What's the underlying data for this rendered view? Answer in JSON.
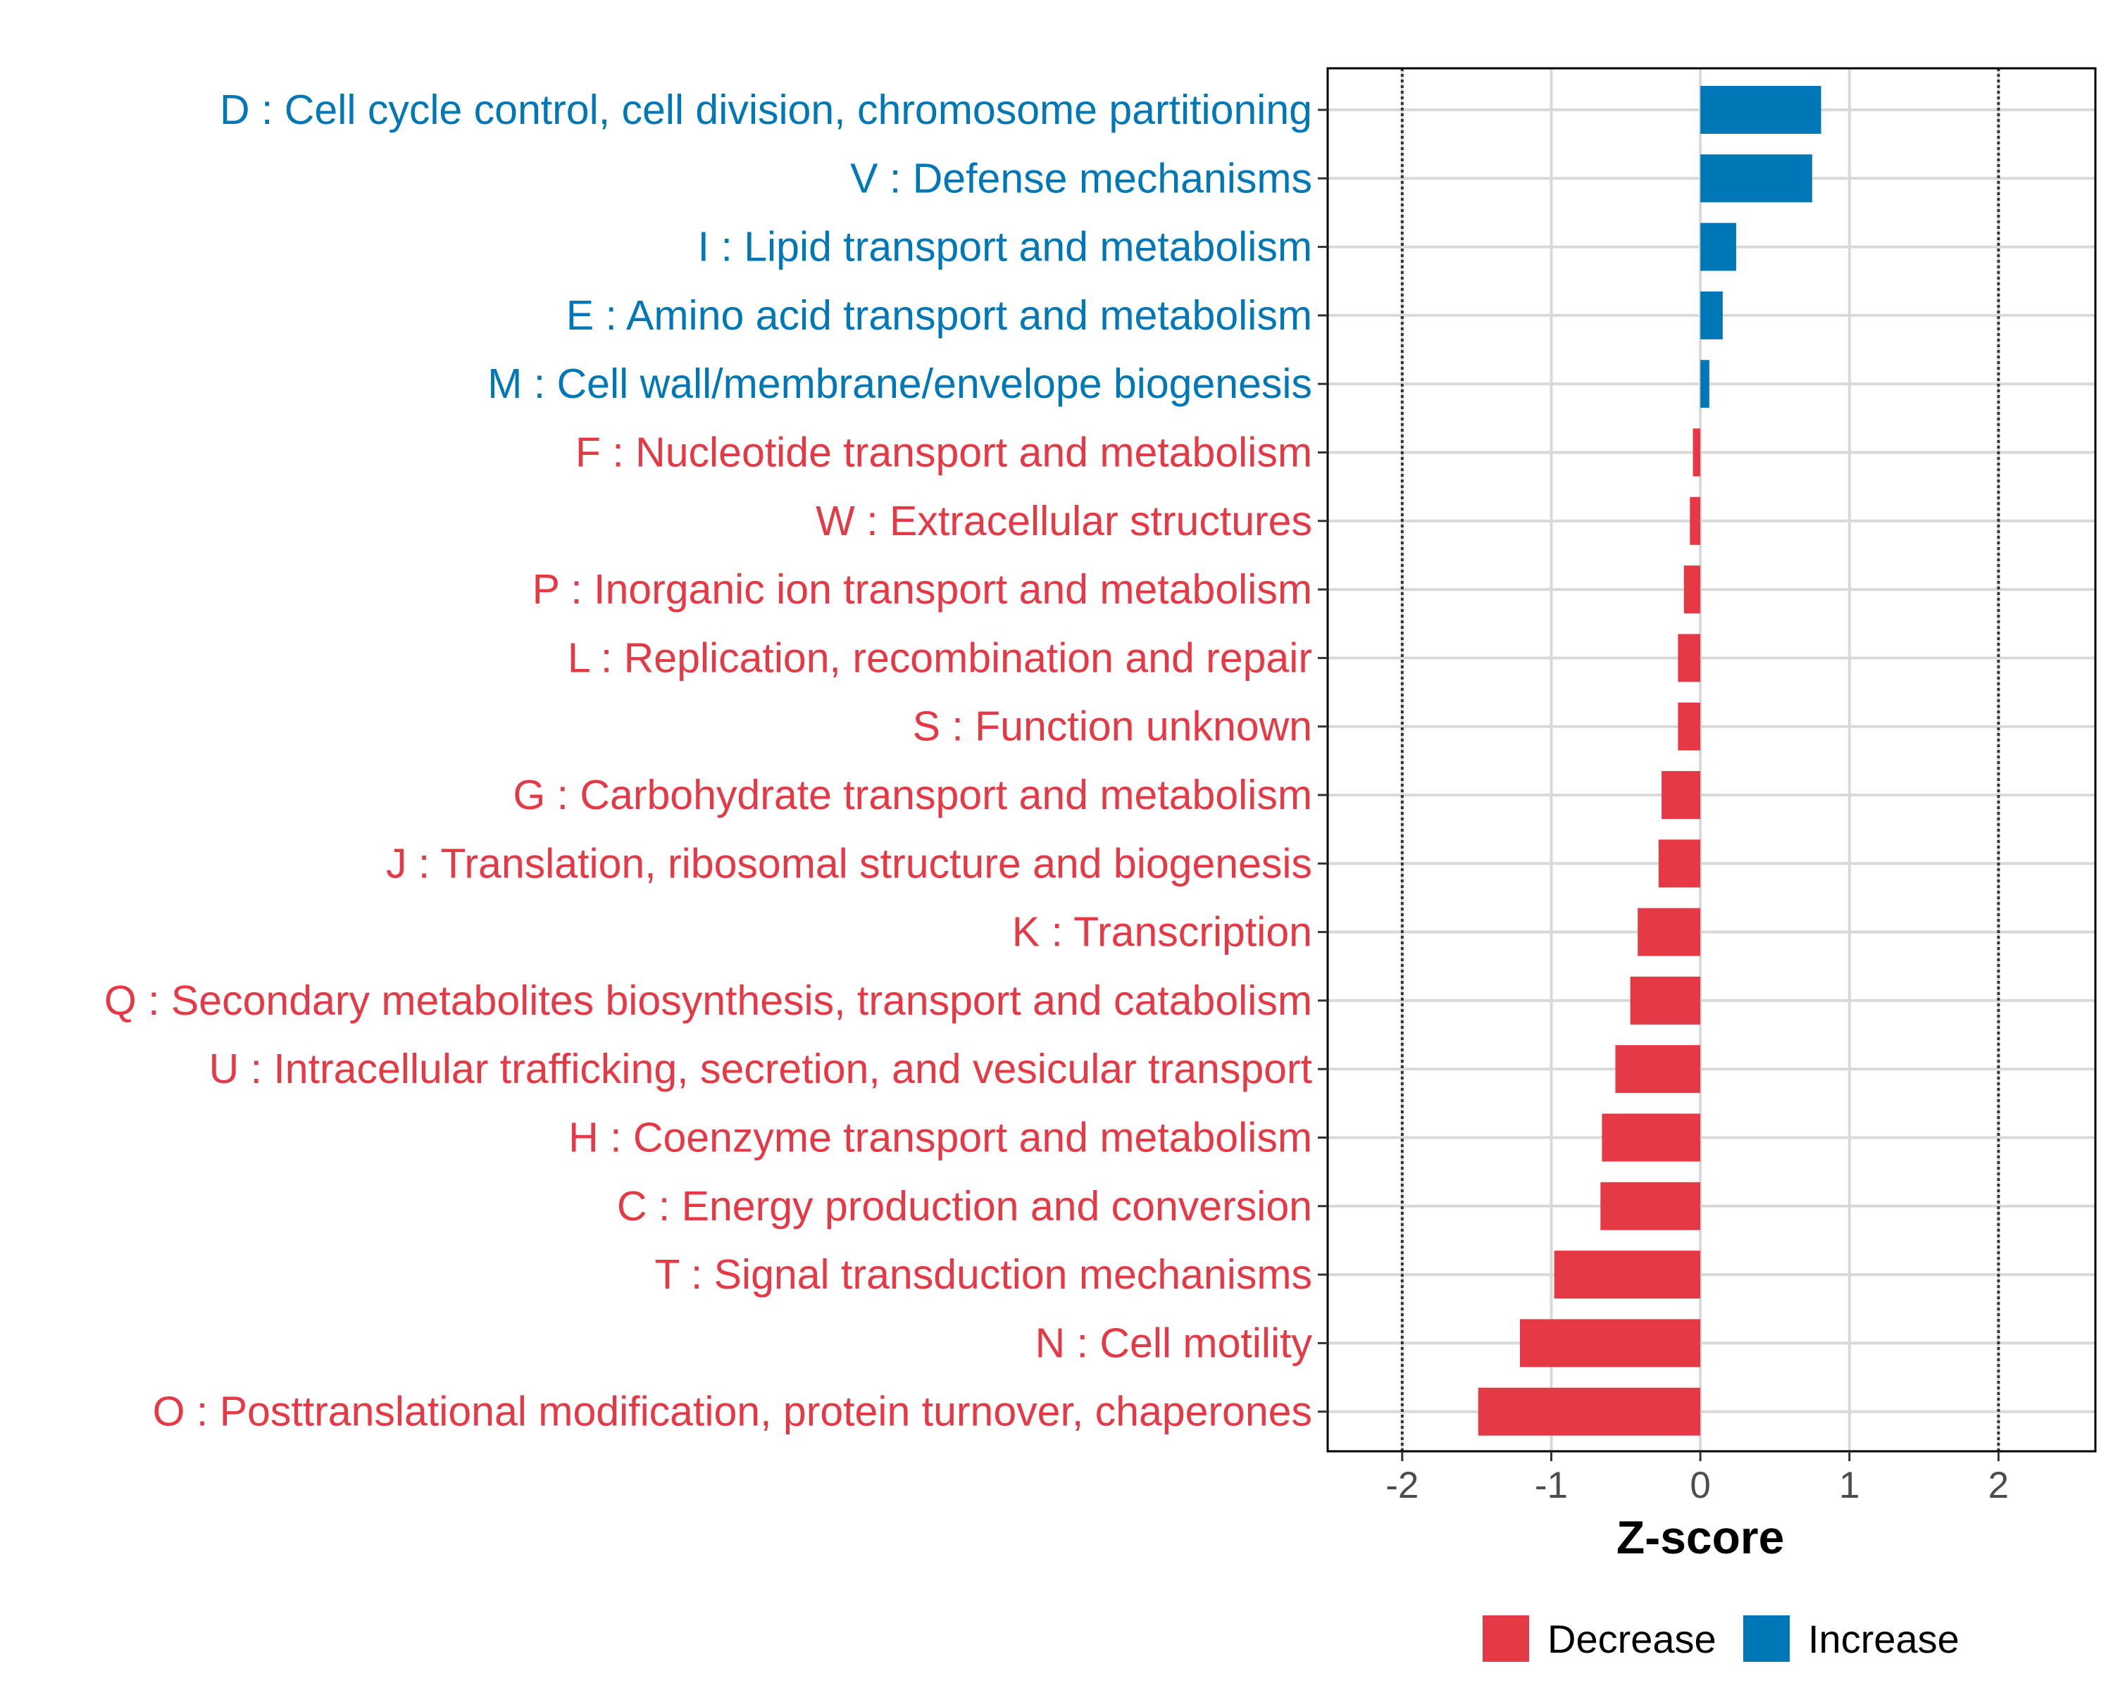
{
  "chart_data": {
    "type": "bar",
    "orientation": "horizontal",
    "xlabel": "Z-score",
    "ylabel": "",
    "xlim": [
      -2.5,
      2.65
    ],
    "x_ticks": [
      -2,
      -1,
      0,
      1,
      2
    ],
    "x_tick_labels": [
      "-2",
      "-1",
      "0",
      "1",
      "2"
    ],
    "reference_lines": [
      -2,
      2
    ],
    "grid": true,
    "legend_position": "bottom",
    "colors": {
      "Decrease": "#e63946",
      "Increase": "#0077b6"
    },
    "legend": [
      {
        "label": "Decrease",
        "color": "#e63946"
      },
      {
        "label": "Increase",
        "color": "#0077b6"
      }
    ],
    "categories": [
      "D : Cell cycle control, cell division, chromosome partitioning",
      "V : Defense mechanisms",
      "I : Lipid transport and metabolism",
      "E : Amino acid transport and metabolism",
      "M : Cell wall/membrane/envelope biogenesis",
      "F : Nucleotide transport and metabolism",
      "W : Extracellular structures",
      "P : Inorganic ion transport and metabolism",
      "L : Replication, recombination and repair",
      "S : Function unknown",
      "G : Carbohydrate transport and metabolism",
      "J : Translation, ribosomal structure and biogenesis",
      "K : Transcription",
      "Q : Secondary metabolites biosynthesis, transport and catabolism",
      "U : Intracellular trafficking, secretion, and vesicular transport",
      "H : Coenzyme transport and metabolism",
      "C : Energy production and conversion",
      "T : Signal transduction mechanisms",
      "N : Cell motility",
      "O : Posttranslational modification, protein turnover, chaperones"
    ],
    "values": [
      0.81,
      0.75,
      0.24,
      0.15,
      0.06,
      -0.05,
      -0.07,
      -0.11,
      -0.15,
      -0.15,
      -0.26,
      -0.28,
      -0.42,
      -0.47,
      -0.57,
      -0.66,
      -0.67,
      -0.98,
      -1.21,
      -1.49
    ],
    "groups": [
      "Increase",
      "Increase",
      "Increase",
      "Increase",
      "Increase",
      "Decrease",
      "Decrease",
      "Decrease",
      "Decrease",
      "Decrease",
      "Decrease",
      "Decrease",
      "Decrease",
      "Decrease",
      "Decrease",
      "Decrease",
      "Decrease",
      "Decrease",
      "Decrease",
      "Decrease"
    ]
  }
}
